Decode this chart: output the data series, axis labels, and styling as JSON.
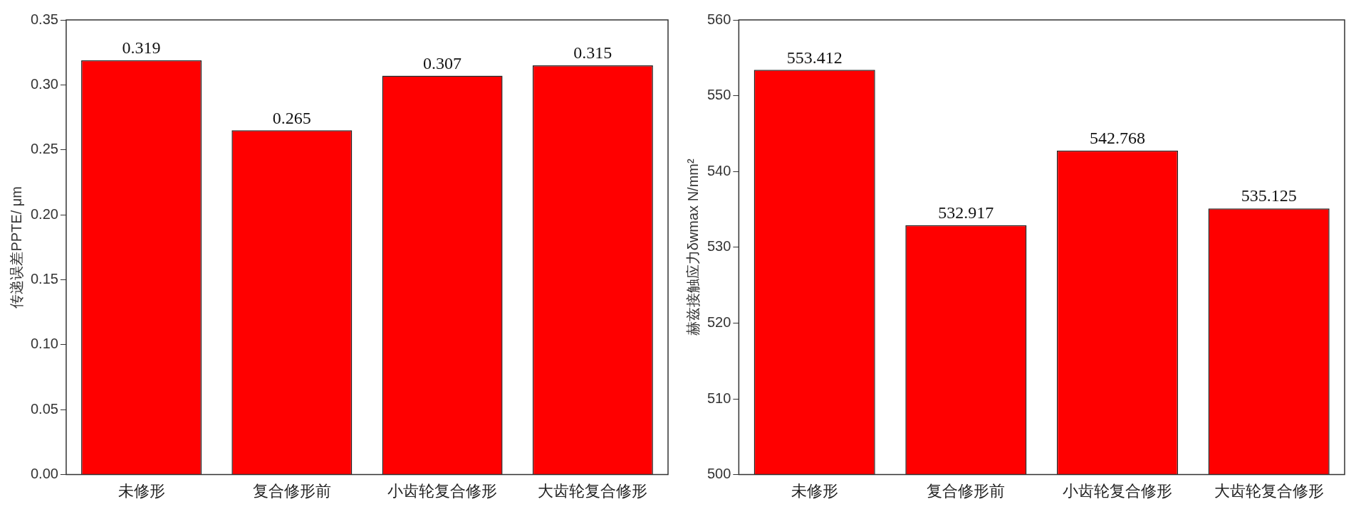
{
  "chart_data": [
    {
      "type": "bar",
      "categories": [
        "未修形",
        "复合修形前",
        "小齿轮复合修形",
        "大齿轮复合修形"
      ],
      "values": [
        0.319,
        0.265,
        0.307,
        0.315
      ],
      "color": "#ff0000",
      "ylabel": "传递误差PPTE/ μm",
      "ylim": [
        0,
        0.35
      ],
      "yticks": [
        {
          "value": 0,
          "label": "0.00"
        },
        0.05,
        {
          "value": 0.1,
          "label": "0.10"
        },
        0.15,
        {
          "value": 0.2,
          "label": "0.20"
        },
        0.25,
        {
          "value": 0.3,
          "label": "0.30"
        },
        0.35
      ],
      "data_labels": true,
      "grid": false,
      "legend": false
    },
    {
      "type": "bar",
      "categories": [
        "未修形",
        "复合修形前",
        "小齿轮复合修形",
        "大齿轮复合修形"
      ],
      "values": [
        553.412,
        532.917,
        542.768,
        535.125
      ],
      "color": "#ff0000",
      "ylabel": "赫兹接触应力δwmax N/mm²",
      "ylim": [
        500,
        560
      ],
      "yticks": [
        500,
        510,
        520,
        530,
        540,
        550,
        560
      ],
      "data_labels": true,
      "grid": false,
      "legend": false
    }
  ]
}
